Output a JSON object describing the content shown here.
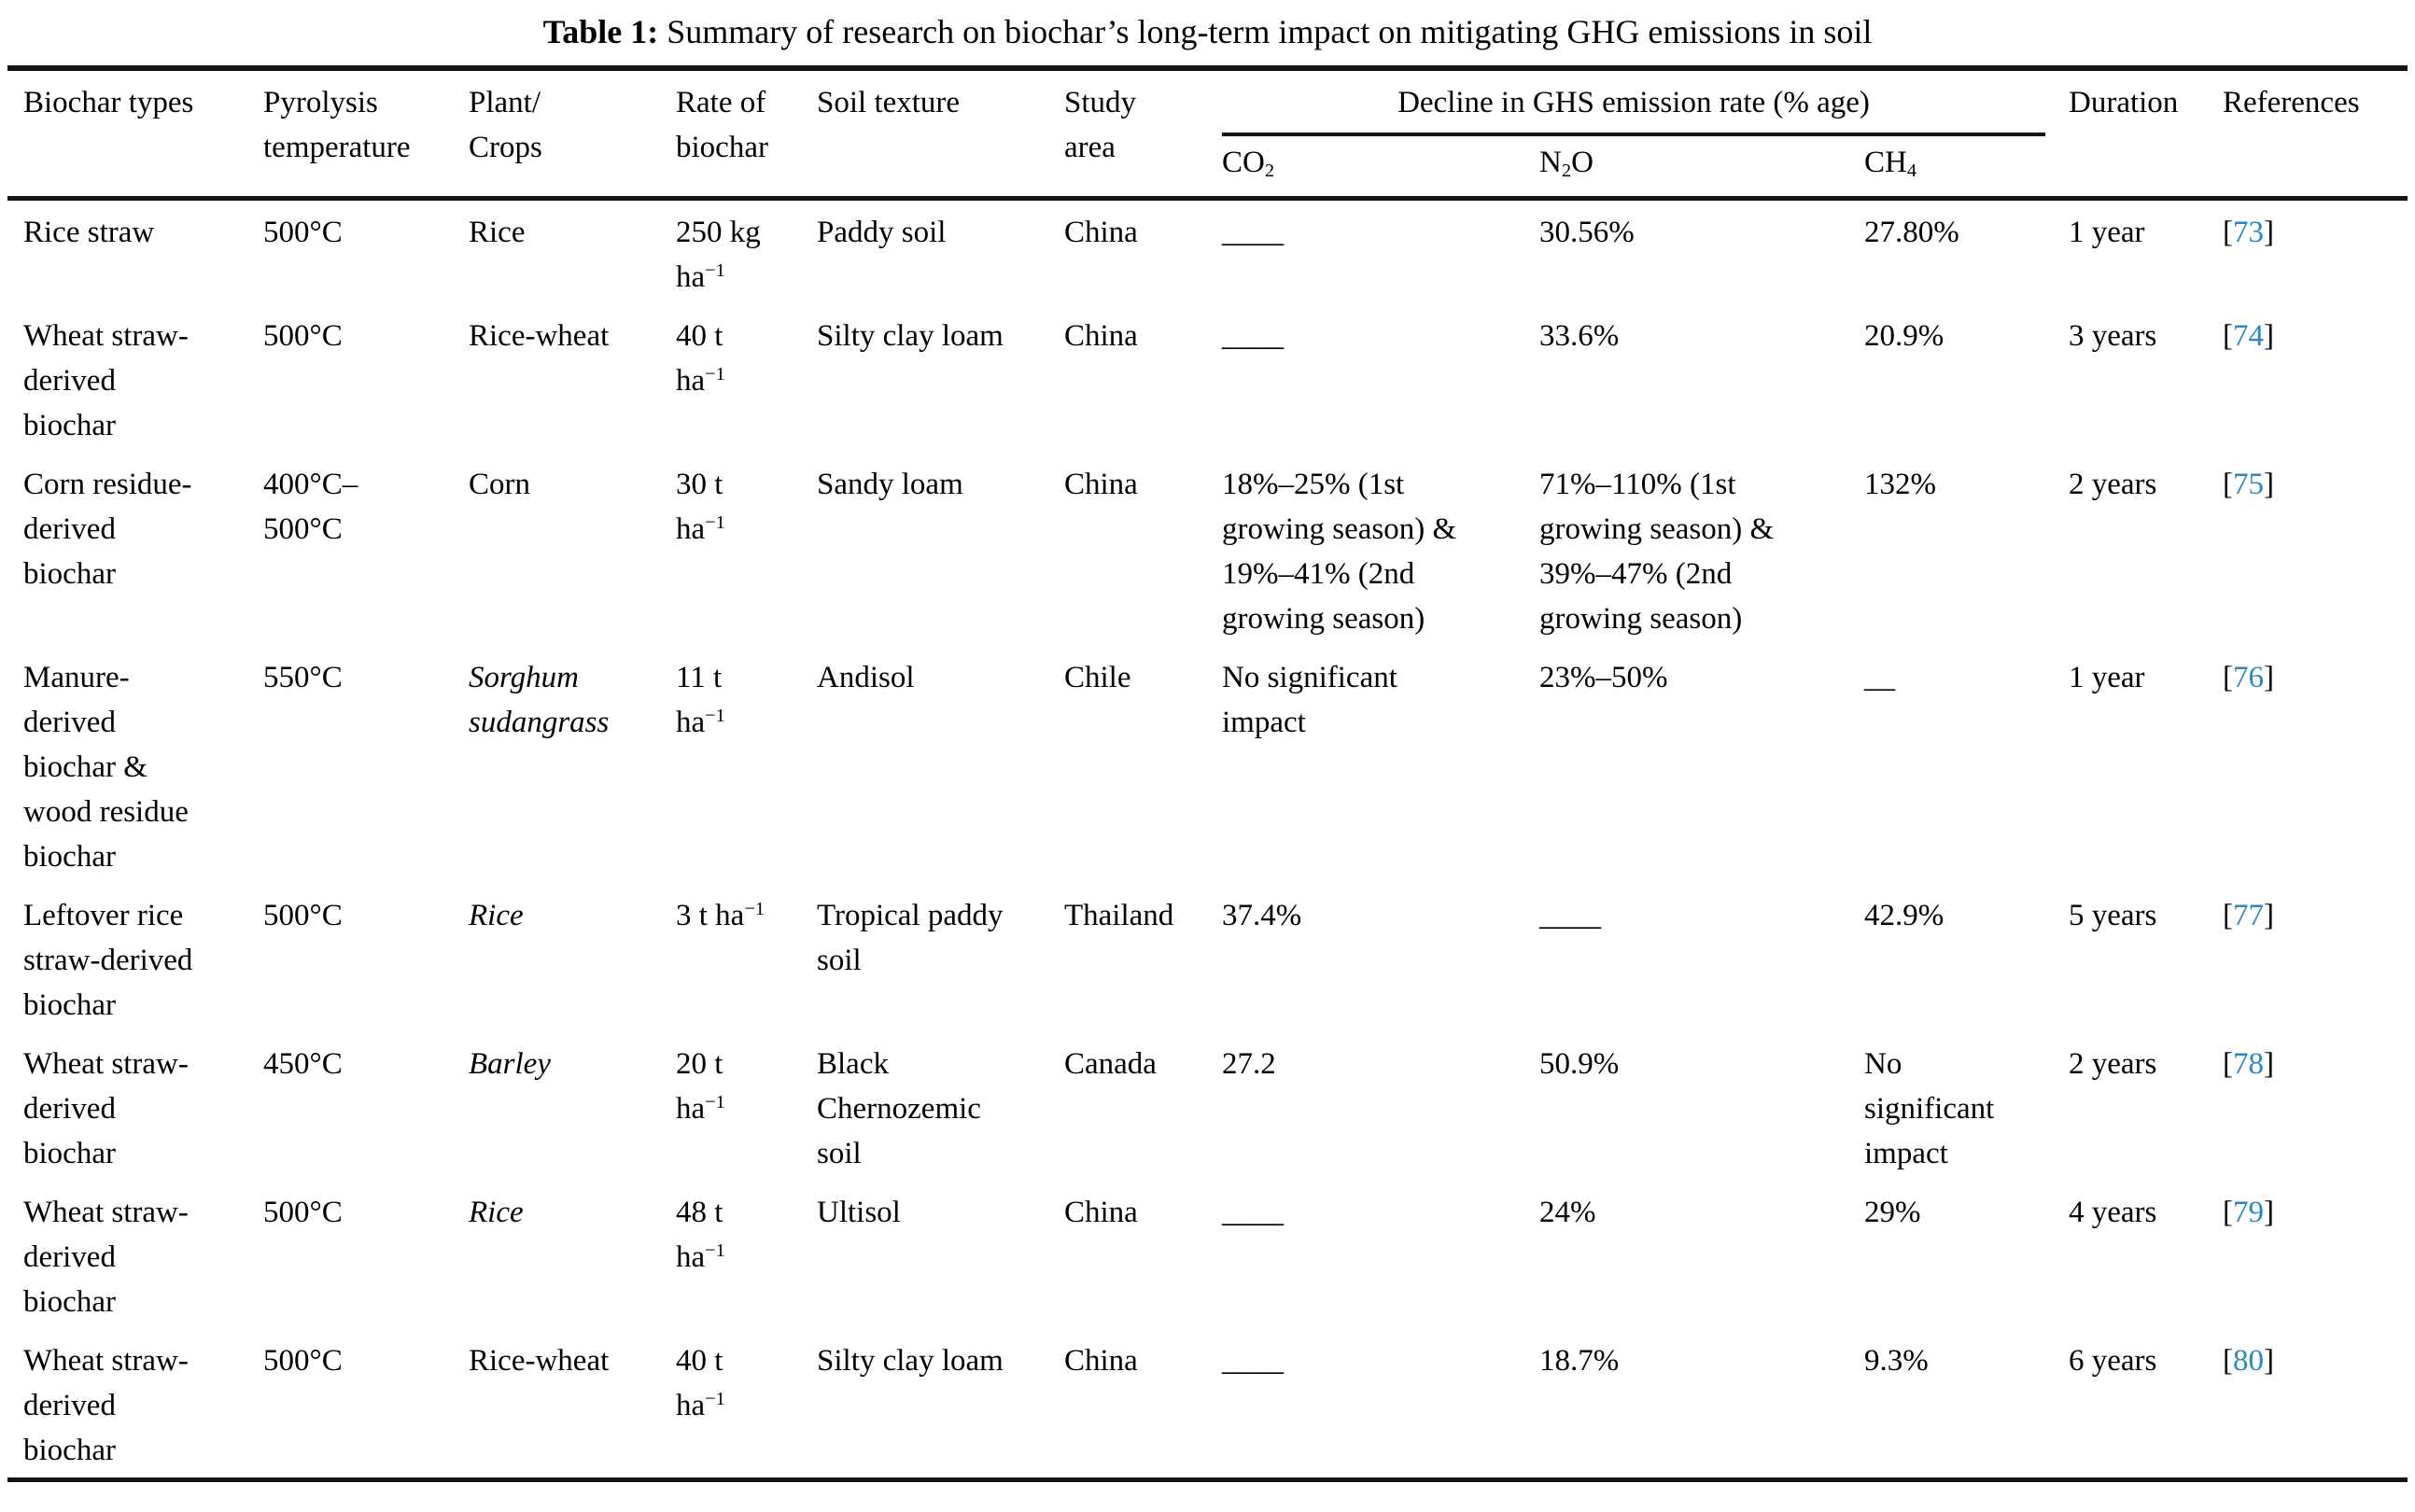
{
  "title": {
    "label": "Table 1:",
    "text": "Summary of research on biochar’s long-term impact on mitigating GHG emissions in soil"
  },
  "accent_color": "#2a87c3",
  "table": {
    "columns": [
      {
        "id": "biochar_type",
        "label": "Biochar types"
      },
      {
        "id": "pyrolysis_temperature",
        "label": "Pyrolysis\ntemperature"
      },
      {
        "id": "plant_crops",
        "label": "Plant/\nCrops"
      },
      {
        "id": "rate_of_biochar",
        "label": "Rate of\nbiochar"
      },
      {
        "id": "soil_texture",
        "label": "Soil texture"
      },
      {
        "id": "study_area",
        "label": "Study\narea"
      },
      {
        "id": "co2",
        "label": "CO_{2}"
      },
      {
        "id": "n2o",
        "label": "N_{2}O"
      },
      {
        "id": "ch4",
        "label": "CH_{4}"
      },
      {
        "id": "duration",
        "label": "Duration"
      },
      {
        "id": "references",
        "label": "References"
      }
    ],
    "group_header": {
      "label": "Decline in GHS emission rate (% age)",
      "spans": [
        "co2",
        "n2o",
        "ch4"
      ]
    },
    "rows": [
      {
        "biochar_type": "Rice straw",
        "pyrolysis_temperature": "500°C",
        "plant_crops": "Rice",
        "rate_of_biochar": "250 kg\nha^{−1}",
        "soil_texture": "Paddy soil",
        "study_area": "China",
        "co2": "____",
        "n2o": "30.56%",
        "ch4": "27.80%",
        "duration": "1 year",
        "reference": "73"
      },
      {
        "biochar_type": "Wheat straw-derived biochar",
        "pyrolysis_temperature": "500°C",
        "plant_crops": "Rice-wheat",
        "rate_of_biochar": "40 t\nha^{−1}",
        "soil_texture": "Silty clay loam",
        "study_area": "China",
        "co2": "____",
        "n2o": "33.6%",
        "ch4": "20.9%",
        "duration": "3 years",
        "reference": "74"
      },
      {
        "biochar_type": "Corn residue-derived biochar",
        "pyrolysis_temperature": "400°C–\n500°C",
        "plant_crops": "Corn",
        "rate_of_biochar": "30 t\nha^{−1}",
        "soil_texture": "Sandy loam",
        "study_area": "China",
        "co2": "18%–25% (1st growing season) & 19%–41% (2nd growing season)",
        "n2o": "71%–110% (1st growing season) & 39%–47% (2nd growing season)",
        "ch4": "132%",
        "duration": "2 years",
        "reference": "75"
      },
      {
        "biochar_type": "Manure-derived biochar & wood residue biochar",
        "pyrolysis_temperature": "550°C",
        "plant_crops": "*Sorghum sudangrass*",
        "rate_of_biochar": "11 t\nha^{−1}",
        "soil_texture": "Andisol",
        "study_area": "Chile",
        "co2": "No significant impact",
        "n2o": "23%–50%",
        "ch4": "__",
        "duration": "1 year",
        "reference": "76"
      },
      {
        "biochar_type": "Leftover rice straw-derived biochar",
        "pyrolysis_temperature": "500°C",
        "plant_crops": "*Rice*",
        "rate_of_biochar": "3 t ha^{−1}",
        "soil_texture": "Tropical paddy soil",
        "study_area": "Thailand",
        "co2": "37.4%",
        "n2o": "____",
        "ch4": "42.9%",
        "duration": "5 years",
        "reference": "77"
      },
      {
        "biochar_type": "Wheat straw-derived biochar",
        "pyrolysis_temperature": "450°C",
        "plant_crops": "*Barley*",
        "rate_of_biochar": "20 t\nha^{−1}",
        "soil_texture": "Black Chernozemic soil",
        "study_area": "Canada",
        "co2": "27.2",
        "n2o": "50.9%",
        "ch4": "No significant impact",
        "duration": "2 years",
        "reference": "78"
      },
      {
        "biochar_type": "Wheat straw-derived biochar",
        "pyrolysis_temperature": "500°C",
        "plant_crops": "*Rice*",
        "rate_of_biochar": "48 t\nha^{−1}",
        "soil_texture": "Ultisol",
        "study_area": "China",
        "co2": "____",
        "n2o": "24%",
        "ch4": "29%",
        "duration": "4 years",
        "reference": "79"
      },
      {
        "biochar_type": "Wheat straw-derived biochar",
        "pyrolysis_temperature": "500°C",
        "plant_crops": "Rice-wheat",
        "rate_of_biochar": "40 t\nha^{−1}",
        "soil_texture": "Silty clay loam",
        "study_area": "China",
        "co2": "____",
        "n2o": "18.7%",
        "ch4": "9.3%",
        "duration": "6 years",
        "reference": "80"
      }
    ]
  }
}
